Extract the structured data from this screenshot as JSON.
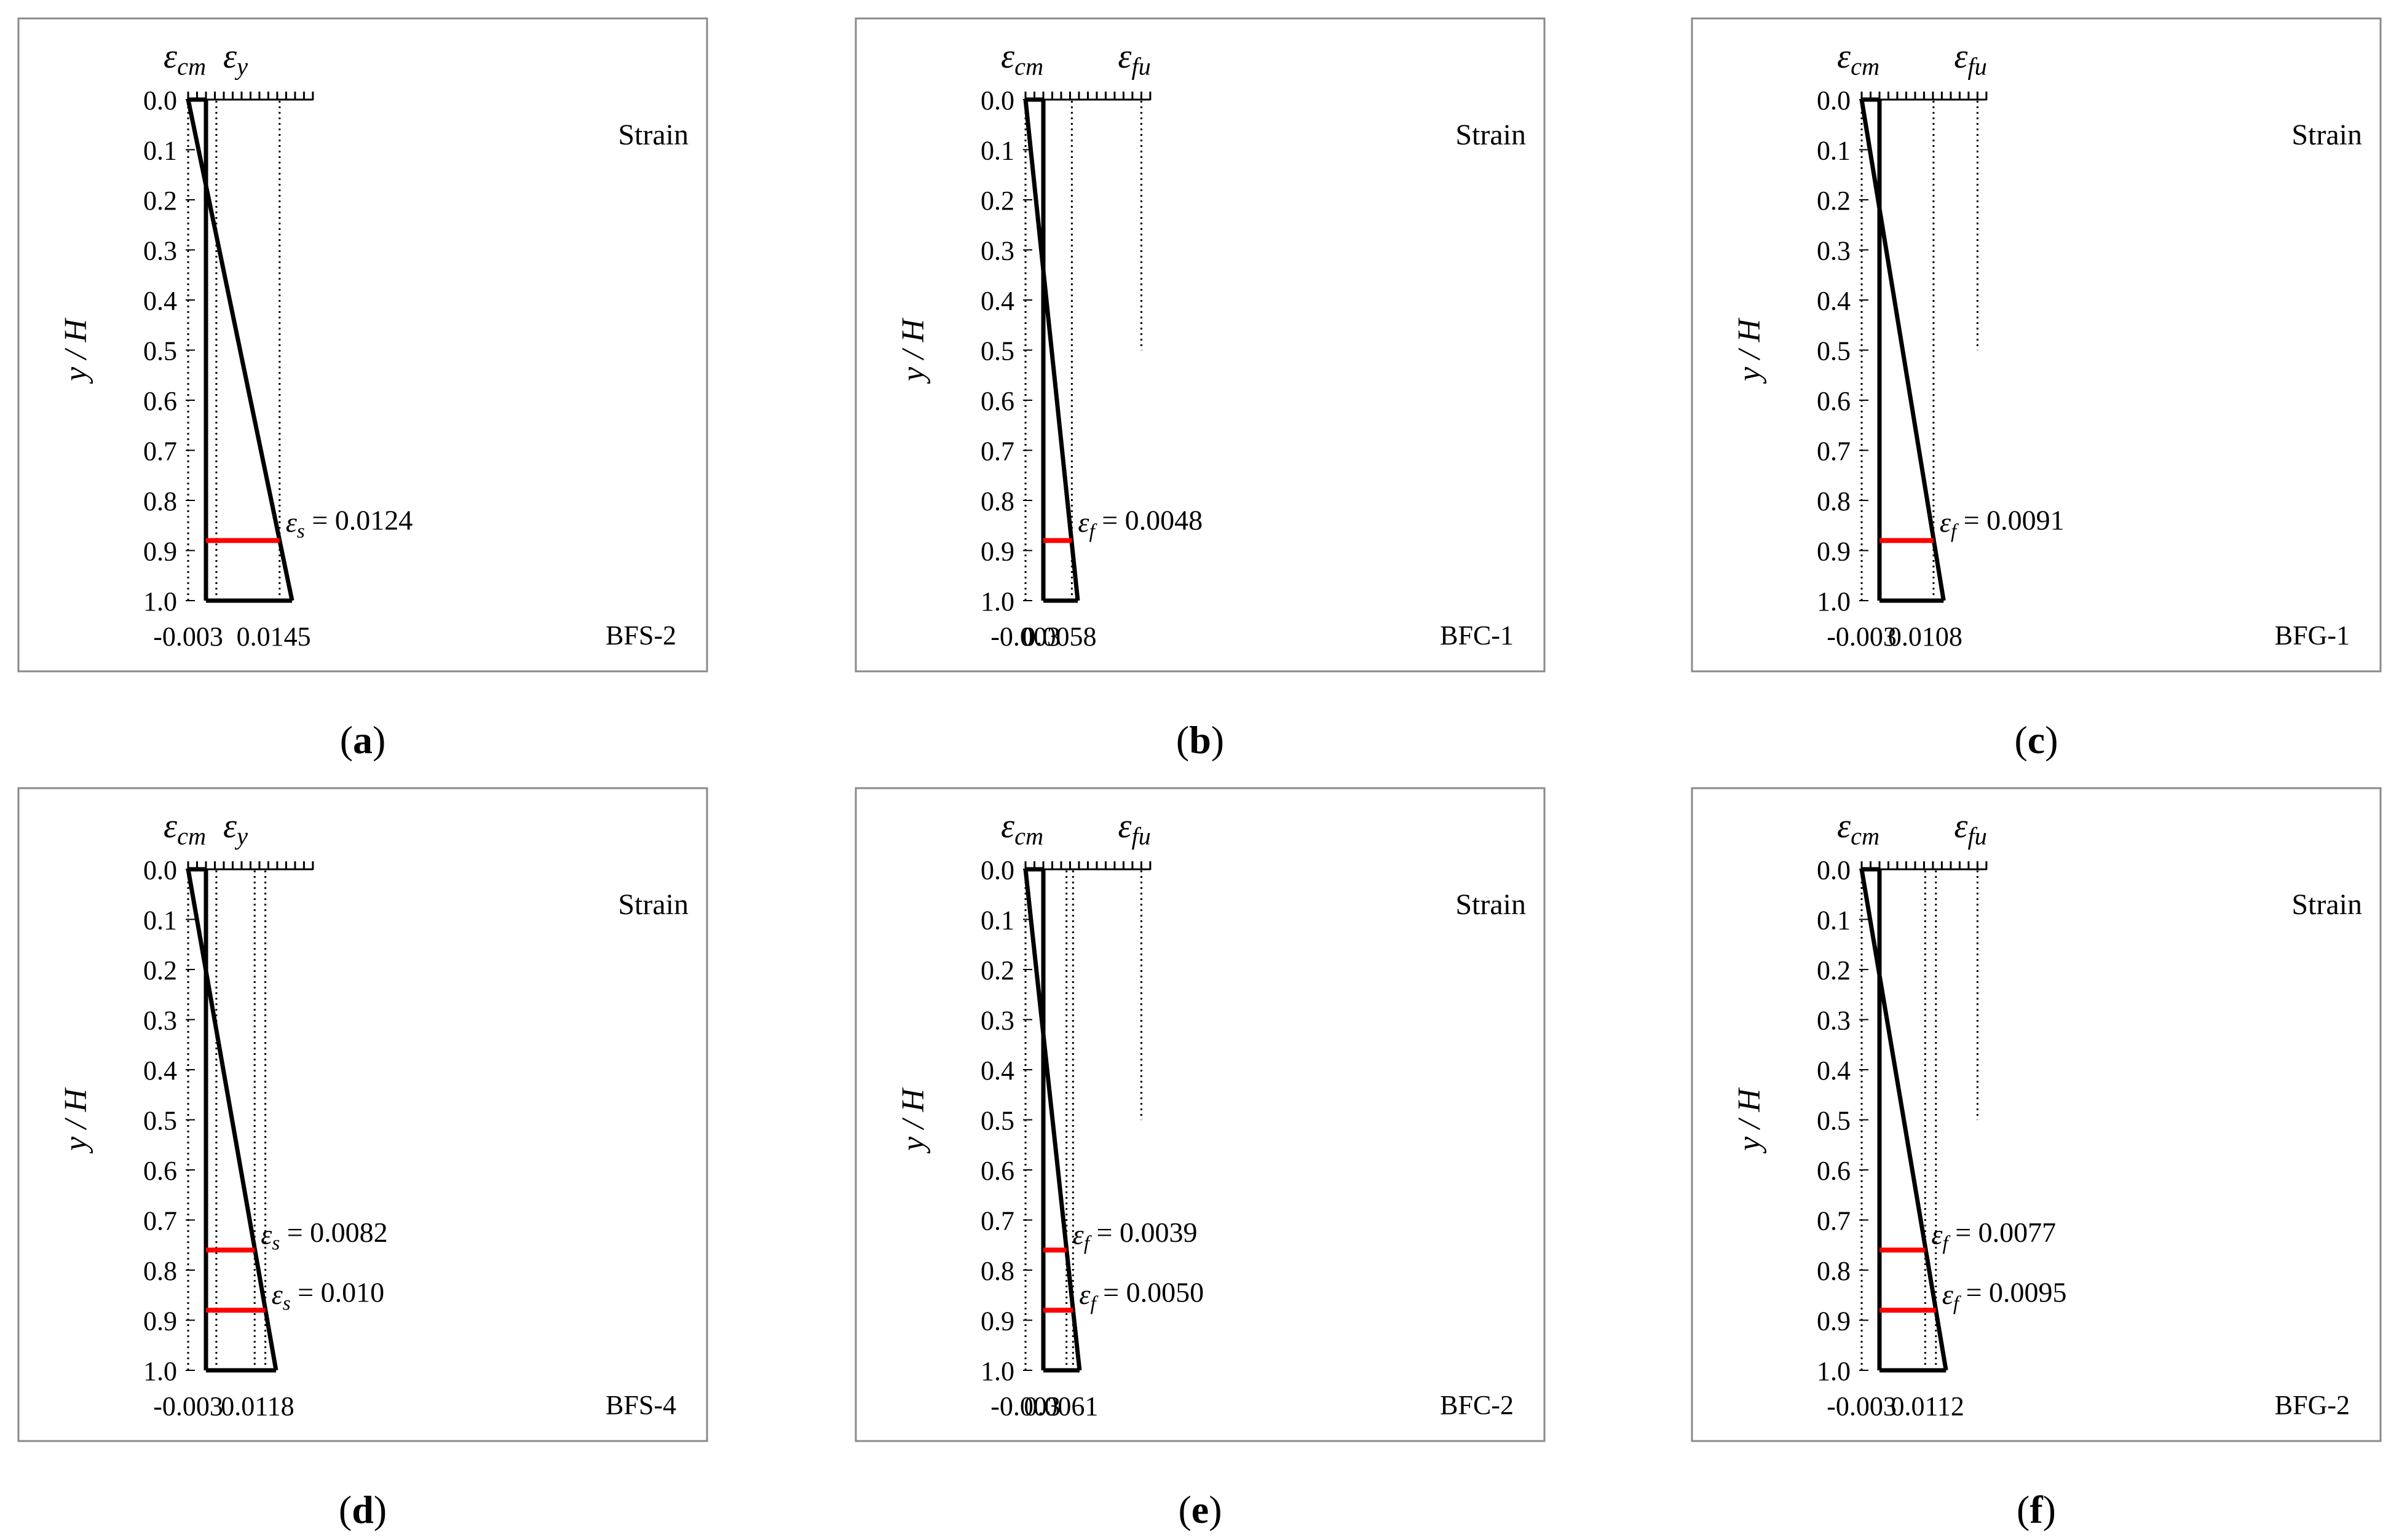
{
  "figure": {
    "axis_label_y": "y / H",
    "x_axis_label": "Strain",
    "y_ticks": [
      "0.0",
      "0.1",
      "0.2",
      "0.3",
      "0.4",
      "0.5",
      "0.6",
      "0.7",
      "0.8",
      "0.9",
      "1.0"
    ]
  },
  "chart_data": [
    {
      "type": "line",
      "panel_letter": "a",
      "specimen": "BFS-2",
      "xlabel": "Strain",
      "ylabel": "y / H",
      "ylim": [
        0,
        1
      ],
      "header_labels": [
        "εcm",
        "εy"
      ],
      "strain_profile": {
        "top": -0.003,
        "bottom": 0.0145,
        "neutral_axis_y": 0.171
      },
      "reference_strains": [
        {
          "name": "εcm",
          "value": -0.003,
          "label": "-0.003"
        },
        {
          "name": "εy",
          "value": 0.00175
        },
        {
          "name": "εs",
          "value": 0.0124
        }
      ],
      "end_label": "0.0145",
      "annotations": [
        {
          "y": 0.88,
          "strain": 0.0124,
          "label": "εs = 0.0124"
        }
      ]
    },
    {
      "type": "line",
      "panel_letter": "b",
      "specimen": "BFC-1",
      "xlabel": "Strain",
      "ylabel": "y / H",
      "ylim": [
        0,
        1
      ],
      "header_labels": [
        "εcm",
        "εfu"
      ],
      "strain_profile": {
        "top": -0.003,
        "bottom": 0.0058,
        "neutral_axis_y": 0.341
      },
      "reference_strains": [
        {
          "name": "εcm",
          "value": -0.003,
          "label": "-0.003"
        },
        {
          "name": "εf",
          "value": 0.0048
        },
        {
          "name": "εfu",
          "value": 0.0165,
          "y_extent": 0.5
        }
      ],
      "end_label": "0.0058",
      "annotations": [
        {
          "y": 0.88,
          "strain": 0.0048,
          "label": "εf = 0.0048"
        }
      ]
    },
    {
      "type": "line",
      "panel_letter": "c",
      "specimen": "BFG-1",
      "xlabel": "Strain",
      "ylabel": "y / H",
      "ylim": [
        0,
        1
      ],
      "header_labels": [
        "εcm",
        "εfu"
      ],
      "strain_profile": {
        "top": -0.003,
        "bottom": 0.0108,
        "neutral_axis_y": 0.217
      },
      "reference_strains": [
        {
          "name": "εcm",
          "value": -0.003,
          "label": "-0.003"
        },
        {
          "name": "εf",
          "value": 0.0091
        },
        {
          "name": "εfu",
          "value": 0.0165,
          "y_extent": 0.5
        }
      ],
      "end_label": "0.0108",
      "annotations": [
        {
          "y": 0.88,
          "strain": 0.0091,
          "label": "εf = 0.0091"
        }
      ]
    },
    {
      "type": "line",
      "panel_letter": "d",
      "specimen": "BFS-4",
      "xlabel": "Strain",
      "ylabel": "y / H",
      "ylim": [
        0,
        1
      ],
      "header_labels": [
        "εcm",
        "εy"
      ],
      "strain_profile": {
        "top": -0.003,
        "bottom": 0.0118,
        "neutral_axis_y": 0.203
      },
      "reference_strains": [
        {
          "name": "εcm",
          "value": -0.003,
          "label": "-0.003"
        },
        {
          "name": "εy",
          "value": 0.00175
        },
        {
          "name": "εs",
          "value": 0.0082
        },
        {
          "name": "εs",
          "value": 0.01
        }
      ],
      "end_label": "0.0118",
      "annotations": [
        {
          "y": 0.76,
          "strain": 0.0082,
          "label": "εs = 0.0082"
        },
        {
          "y": 0.88,
          "strain": 0.01,
          "label": "εs = 0.010"
        }
      ]
    },
    {
      "type": "line",
      "panel_letter": "e",
      "specimen": "BFC-2",
      "xlabel": "Strain",
      "ylabel": "y / H",
      "ylim": [
        0,
        1
      ],
      "header_labels": [
        "εcm",
        "εfu"
      ],
      "strain_profile": {
        "top": -0.003,
        "bottom": 0.0061,
        "neutral_axis_y": 0.33
      },
      "reference_strains": [
        {
          "name": "εcm",
          "value": -0.003,
          "label": "-0.003"
        },
        {
          "name": "εf",
          "value": 0.0039
        },
        {
          "name": "εf",
          "value": 0.005
        },
        {
          "name": "εfu",
          "value": 0.0165,
          "y_extent": 0.5
        }
      ],
      "end_label": "0.0061",
      "annotations": [
        {
          "y": 0.76,
          "strain": 0.0039,
          "label": "εf = 0.0039"
        },
        {
          "y": 0.88,
          "strain": 0.005,
          "label": "εf = 0.0050"
        }
      ]
    },
    {
      "type": "line",
      "panel_letter": "f",
      "specimen": "BFG-2",
      "xlabel": "Strain",
      "ylabel": "y / H",
      "ylim": [
        0,
        1
      ],
      "header_labels": [
        "εcm",
        "εfu"
      ],
      "strain_profile": {
        "top": -0.003,
        "bottom": 0.0112,
        "neutral_axis_y": 0.211
      },
      "reference_strains": [
        {
          "name": "εcm",
          "value": -0.003,
          "label": "-0.003"
        },
        {
          "name": "εf",
          "value": 0.0077
        },
        {
          "name": "εf",
          "value": 0.0095
        },
        {
          "name": "εfu",
          "value": 0.0165,
          "y_extent": 0.5
        }
      ],
      "end_label": "0.0112",
      "annotations": [
        {
          "y": 0.76,
          "strain": 0.0077,
          "label": "εf = 0.0077"
        },
        {
          "y": 0.88,
          "strain": 0.0095,
          "label": "εf = 0.0095"
        }
      ]
    }
  ]
}
